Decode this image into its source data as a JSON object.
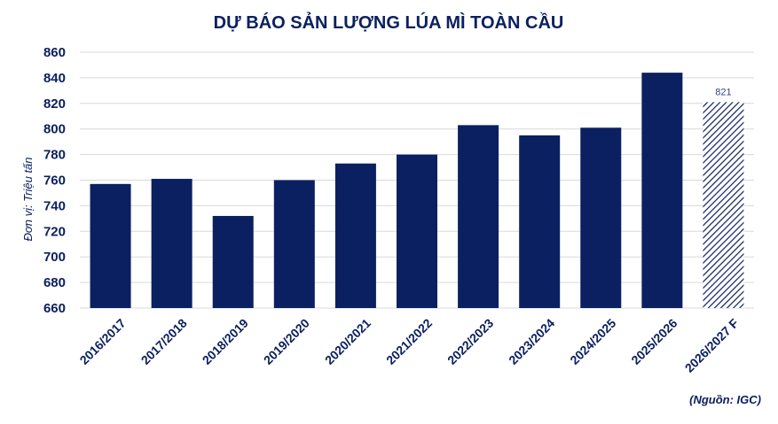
{
  "chart_data": {
    "type": "bar",
    "title": "DỰ BÁO SẢN LƯỢNG LÚA MÌ TOÀN CẦU",
    "ylabel": "Đơn vị: Triệu tấn",
    "xlabel": "",
    "source": "(Nguồn: IGC)",
    "ylim": [
      660,
      860
    ],
    "yticks": [
      660,
      680,
      700,
      720,
      740,
      760,
      780,
      800,
      820,
      840,
      860
    ],
    "categories": [
      "2016/2017",
      "2017/2018",
      "2018/2019",
      "2019/2020",
      "2020/2021",
      "2021/2022",
      "2022/2023",
      "2023/2024",
      "2024/2025",
      "2025/2026",
      "2026/2027 F"
    ],
    "values": [
      757,
      761,
      732,
      760,
      773,
      780,
      803,
      795,
      801,
      844,
      821
    ],
    "forecast": [
      false,
      false,
      false,
      false,
      false,
      false,
      false,
      false,
      false,
      false,
      true
    ],
    "data_labels": [
      "",
      "",
      "",
      "",
      "",
      "",
      "",
      "",
      "",
      "",
      "821"
    ],
    "grid": true,
    "colors": {
      "bar": "#0b2060",
      "forecast_hatch": "#0b2060",
      "text": "#0b2060",
      "grid": "#d9d9d9"
    }
  }
}
